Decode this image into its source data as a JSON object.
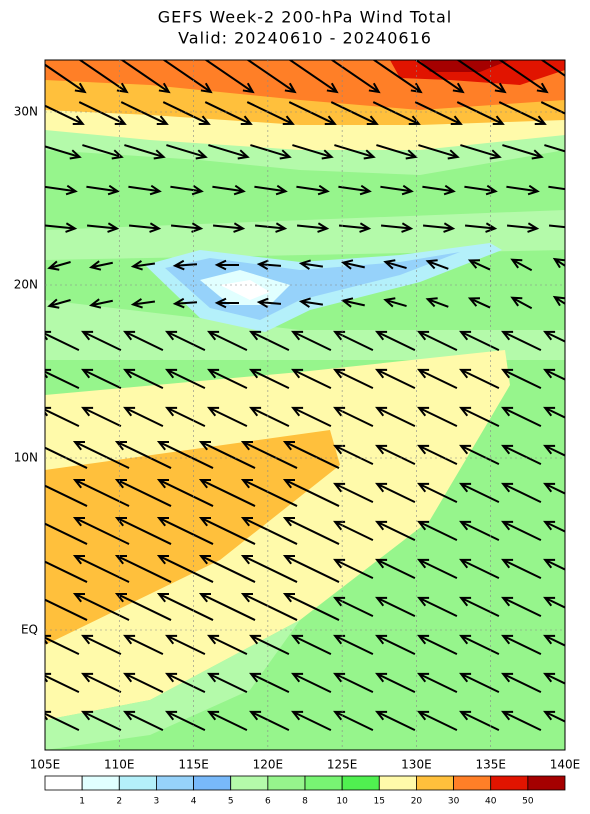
{
  "title": "GEFS Week-2 200-hPa Wind Total",
  "subtitle": "Valid: 20240610 - 20240616",
  "lat_labels": [
    "30N",
    "20N",
    "10N",
    "EQ"
  ],
  "lon_labels": [
    "105E",
    "110E",
    "115E",
    "120E",
    "125E",
    "130E",
    "135E",
    "140E"
  ],
  "colorbar": {
    "labels": [
      "1",
      "2",
      "3",
      "4",
      "5",
      "6",
      "8",
      "10",
      "15",
      "20",
      "30",
      "40",
      "50"
    ],
    "colors": [
      "#ffffff",
      "#e1ffff",
      "#b4f0fa",
      "#96d2fa",
      "#78b9fa",
      "#b4faaa",
      "#96f58c",
      "#78f573",
      "#50f050",
      "#fffaaa",
      "#ffc03c",
      "#ff7f27",
      "#e11400",
      "#a50000"
    ]
  }
}
